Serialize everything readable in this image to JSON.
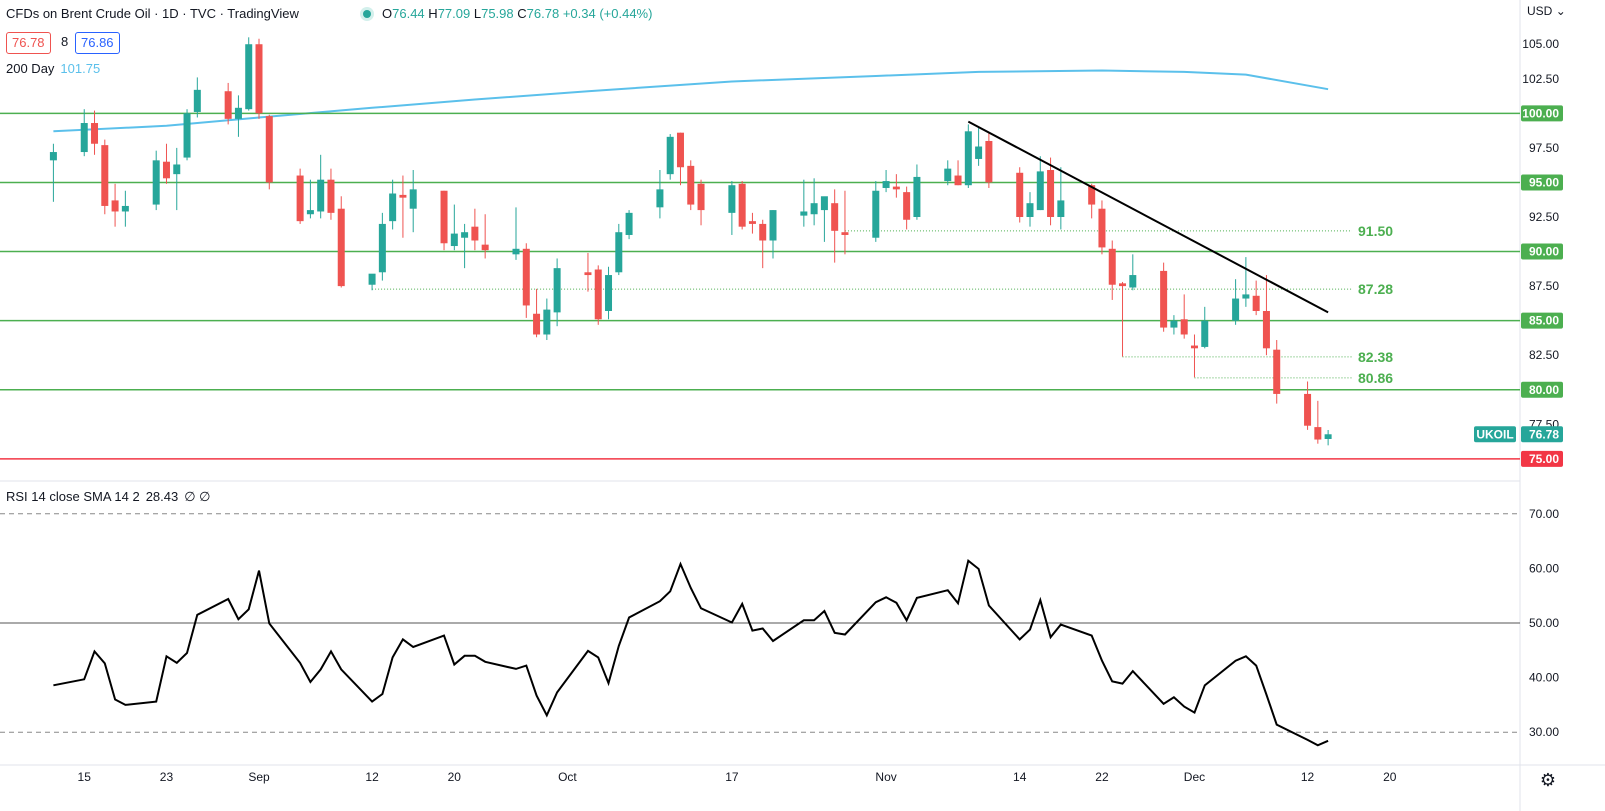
{
  "header": {
    "title": "CFDs on Brent Crude Oil · 1D · TVC · TradingView",
    "ohlc": [
      {
        "k": "O",
        "v": "76.44"
      },
      {
        "k": "H",
        "v": "77.09"
      },
      {
        "k": "L",
        "v": "75.98"
      },
      {
        "k": "C",
        "v": "76.78"
      }
    ],
    "change": "+0.34 (+0.44%)",
    "sell_price": "76.78",
    "spread": "8",
    "buy_price": "76.86",
    "currency": "USD"
  },
  "ma_legend": {
    "label": "200 Day",
    "value": "101.75"
  },
  "rsi_legend": {
    "label": "RSI 14 close SMA 14 2",
    "value": "28.43",
    "extra": "∅ ∅"
  },
  "colors": {
    "up": "#26a69a",
    "down": "#ef5350",
    "ma": "#5bc0eb",
    "support": "#4caf50",
    "key": "#f23645",
    "trend": "#000000"
  },
  "chart_data": [
    {
      "type": "candlestick",
      "title": "CFDs on Brent Crude Oil · 1D · TVC · TradingView",
      "ylim": [
        73.4,
        108.2
      ],
      "x_tick_labels": [
        "15",
        "23",
        "Sep",
        "12",
        "20",
        "Oct",
        "17",
        "Nov",
        "14",
        "22",
        "Dec",
        "12",
        "20"
      ],
      "x_tick_dates": [
        "Aug 15",
        "Aug 23",
        "Sep 1",
        "Sep 12",
        "Sep 20",
        "Oct 1",
        "Oct 17",
        "Nov 1",
        "Nov 14",
        "Nov 22",
        "Dec 1",
        "Dec 12",
        "Dec 20"
      ],
      "y_ticks": [
        "77.50",
        "82.50",
        "87.50",
        "92.50",
        "97.50",
        "102.50",
        "105.00"
      ],
      "candles": [
        {
          "d": "Aug 12",
          "o": 96.6,
          "h": 97.8,
          "l": 93.6,
          "c": 97.2
        },
        {
          "d": "Aug 15",
          "o": 97.2,
          "h": 100.3,
          "l": 96.9,
          "c": 99.3
        },
        {
          "d": "Aug 16",
          "o": 99.3,
          "h": 100.2,
          "l": 97.0,
          "c": 97.8
        },
        {
          "d": "Aug 17",
          "o": 97.7,
          "h": 98.1,
          "l": 92.7,
          "c": 93.3
        },
        {
          "d": "Aug 18",
          "o": 93.7,
          "h": 94.9,
          "l": 91.8,
          "c": 92.9
        },
        {
          "d": "Aug 19",
          "o": 92.9,
          "h": 94.4,
          "l": 91.8,
          "c": 93.3
        },
        {
          "d": "Aug 22",
          "o": 93.4,
          "h": 97.3,
          "l": 93.0,
          "c": 96.6
        },
        {
          "d": "Aug 23",
          "o": 96.5,
          "h": 97.8,
          "l": 94.9,
          "c": 95.3
        },
        {
          "d": "Aug 24",
          "o": 95.6,
          "h": 97.5,
          "l": 93.0,
          "c": 96.3
        },
        {
          "d": "Aug 25",
          "o": 96.8,
          "h": 100.3,
          "l": 96.6,
          "c": 100.0
        },
        {
          "d": "Aug 26",
          "o": 100.1,
          "h": 102.6,
          "l": 99.7,
          "c": 101.7
        },
        {
          "d": "Aug 29",
          "o": 101.6,
          "h": 102.2,
          "l": 99.2,
          "c": 99.6
        },
        {
          "d": "Aug 30",
          "o": 99.6,
          "h": 101.3,
          "l": 98.3,
          "c": 100.4
        },
        {
          "d": "Aug 31",
          "o": 100.3,
          "h": 105.5,
          "l": 100.2,
          "c": 105.0
        },
        {
          "d": "Sep 1",
          "o": 105.0,
          "h": 105.4,
          "l": 99.6,
          "c": 100.0
        },
        {
          "d": "Sep 2",
          "o": 99.8,
          "h": 99.9,
          "l": 94.5,
          "c": 95.0
        },
        {
          "d": "Sep 5",
          "o": 95.5,
          "h": 96.0,
          "l": 92.0,
          "c": 92.2
        },
        {
          "d": "Sep 6",
          "o": 92.7,
          "h": 95.2,
          "l": 92.4,
          "c": 93.0
        },
        {
          "d": "Sep 7",
          "o": 92.9,
          "h": 97.0,
          "l": 92.4,
          "c": 95.2
        },
        {
          "d": "Sep 8",
          "o": 95.2,
          "h": 96.0,
          "l": 92.3,
          "c": 92.8
        },
        {
          "d": "Sep 9",
          "o": 93.1,
          "h": 94.0,
          "l": 87.4,
          "c": 87.5
        },
        {
          "d": "Sep 12",
          "o": 87.6,
          "h": 88.3,
          "l": 87.2,
          "c": 88.4
        },
        {
          "d": "Sep 13",
          "o": 88.5,
          "h": 92.8,
          "l": 87.9,
          "c": 92.0
        },
        {
          "d": "Sep 14",
          "o": 92.2,
          "h": 95.2,
          "l": 91.6,
          "c": 94.2
        },
        {
          "d": "Sep 15",
          "o": 94.1,
          "h": 95.5,
          "l": 91.0,
          "c": 93.9
        },
        {
          "d": "Sep 16",
          "o": 93.1,
          "h": 95.9,
          "l": 91.4,
          "c": 94.5
        },
        {
          "d": "Sep 19",
          "o": 94.4,
          "h": 94.4,
          "l": 90.1,
          "c": 90.6
        },
        {
          "d": "Sep 20",
          "o": 90.4,
          "h": 93.4,
          "l": 90.1,
          "c": 91.3
        },
        {
          "d": "Sep 21",
          "o": 91.0,
          "h": 92.0,
          "l": 88.8,
          "c": 91.4
        },
        {
          "d": "Sep 22",
          "o": 91.8,
          "h": 93.1,
          "l": 90.1,
          "c": 90.8
        },
        {
          "d": "Sep 23",
          "o": 90.5,
          "h": 92.7,
          "l": 89.5,
          "c": 90.1
        },
        {
          "d": "Sep 26",
          "o": 89.8,
          "h": 93.2,
          "l": 89.4,
          "c": 90.2
        },
        {
          "d": "Sep 27",
          "o": 90.2,
          "h": 90.6,
          "l": 85.2,
          "c": 86.1
        },
        {
          "d": "Sep 28",
          "o": 85.5,
          "h": 87.3,
          "l": 83.8,
          "c": 84.0
        },
        {
          "d": "Sep 29",
          "o": 84.0,
          "h": 86.6,
          "l": 83.6,
          "c": 85.8
        },
        {
          "d": "Sep 30",
          "o": 85.6,
          "h": 89.5,
          "l": 84.6,
          "c": 88.8
        },
        {
          "d": "Oct 3",
          "o": 88.5,
          "h": 89.9,
          "l": 87.1,
          "c": 88.3
        },
        {
          "d": "Oct 4",
          "o": 88.7,
          "h": 89.0,
          "l": 84.7,
          "c": 85.1
        },
        {
          "d": "Oct 5",
          "o": 85.7,
          "h": 88.9,
          "l": 85.1,
          "c": 88.3
        },
        {
          "d": "Oct 6",
          "o": 88.5,
          "h": 92.0,
          "l": 88.3,
          "c": 91.4
        },
        {
          "d": "Oct 7",
          "o": 91.2,
          "h": 93.0,
          "l": 90.9,
          "c": 92.8
        },
        {
          "d": "Oct 10",
          "o": 93.2,
          "h": 95.9,
          "l": 92.4,
          "c": 94.5
        },
        {
          "d": "Oct 11",
          "o": 95.6,
          "h": 98.5,
          "l": 95.2,
          "c": 98.3
        },
        {
          "d": "Oct 12",
          "o": 98.6,
          "h": 98.6,
          "l": 94.8,
          "c": 96.1
        },
        {
          "d": "Oct 13",
          "o": 96.2,
          "h": 96.6,
          "l": 93.0,
          "c": 93.4
        },
        {
          "d": "Oct 14",
          "o": 94.9,
          "h": 95.2,
          "l": 91.9,
          "c": 93.0
        },
        {
          "d": "Oct 17",
          "o": 92.8,
          "h": 95.1,
          "l": 91.2,
          "c": 94.8
        },
        {
          "d": "Oct 18",
          "o": 94.9,
          "h": 95.1,
          "l": 91.6,
          "c": 91.8
        },
        {
          "d": "Oct 19",
          "o": 92.2,
          "h": 92.8,
          "l": 91.3,
          "c": 92.0
        },
        {
          "d": "Oct 20",
          "o": 92.0,
          "h": 92.3,
          "l": 88.8,
          "c": 90.8
        },
        {
          "d": "Oct 21",
          "o": 90.8,
          "h": 93.0,
          "l": 89.5,
          "c": 93.0
        },
        {
          "d": "Oct 24",
          "o": 92.6,
          "h": 95.2,
          "l": 91.8,
          "c": 92.9
        },
        {
          "d": "Oct 25",
          "o": 92.7,
          "h": 95.3,
          "l": 91.9,
          "c": 93.5
        },
        {
          "d": "Oct 26",
          "o": 93.0,
          "h": 93.8,
          "l": 90.7,
          "c": 94.0
        },
        {
          "d": "Oct 27",
          "o": 93.5,
          "h": 94.5,
          "l": 89.2,
          "c": 91.5
        },
        {
          "d": "Oct 28",
          "o": 91.4,
          "h": 94.4,
          "l": 89.8,
          "c": 91.2
        },
        {
          "d": "Oct 31",
          "o": 91.0,
          "h": 95.1,
          "l": 90.7,
          "c": 94.4
        },
        {
          "d": "Nov 1",
          "o": 94.6,
          "h": 95.9,
          "l": 94.3,
          "c": 95.1
        },
        {
          "d": "Nov 2",
          "o": 94.7,
          "h": 95.6,
          "l": 93.9,
          "c": 94.5
        },
        {
          "d": "Nov 3",
          "o": 94.3,
          "h": 94.7,
          "l": 91.6,
          "c": 92.3
        },
        {
          "d": "Nov 4",
          "o": 92.5,
          "h": 96.3,
          "l": 92.3,
          "c": 95.4
        },
        {
          "d": "Nov 7",
          "o": 95.1,
          "h": 96.6,
          "l": 94.8,
          "c": 96.0
        },
        {
          "d": "Nov 8",
          "o": 95.5,
          "h": 96.6,
          "l": 94.8,
          "c": 94.8
        },
        {
          "d": "Nov 9",
          "o": 94.8,
          "h": 99.2,
          "l": 94.6,
          "c": 98.7
        },
        {
          "d": "Nov 10",
          "o": 96.7,
          "h": 99.0,
          "l": 96.2,
          "c": 97.6
        },
        {
          "d": "Nov 11",
          "o": 98.0,
          "h": 98.6,
          "l": 94.6,
          "c": 95.0
        },
        {
          "d": "Nov 14",
          "o": 95.7,
          "h": 96.1,
          "l": 92.1,
          "c": 92.5
        },
        {
          "d": "Nov 15",
          "o": 92.5,
          "h": 94.3,
          "l": 91.8,
          "c": 93.5
        },
        {
          "d": "Nov 16",
          "o": 93.0,
          "h": 96.9,
          "l": 93.0,
          "c": 95.8
        },
        {
          "d": "Nov 17",
          "o": 95.9,
          "h": 96.8,
          "l": 91.9,
          "c": 92.5
        },
        {
          "d": "Nov 18",
          "o": 92.5,
          "h": 96.1,
          "l": 91.6,
          "c": 93.7
        },
        {
          "d": "Nov 21",
          "o": 94.8,
          "h": 94.9,
          "l": 92.4,
          "c": 93.4
        },
        {
          "d": "Nov 22",
          "o": 93.1,
          "h": 93.7,
          "l": 89.8,
          "c": 90.3
        },
        {
          "d": "Nov 23",
          "o": 90.2,
          "h": 90.8,
          "l": 86.5,
          "c": 87.6
        },
        {
          "d": "Nov 24",
          "o": 87.7,
          "h": 87.8,
          "l": 82.4,
          "c": 87.5
        },
        {
          "d": "Nov 25",
          "o": 87.4,
          "h": 89.8,
          "l": 87.2,
          "c": 88.3
        },
        {
          "d": "Nov 28",
          "o": 88.6,
          "h": 89.2,
          "l": 84.2,
          "c": 84.5
        },
        {
          "d": "Nov 29",
          "o": 84.5,
          "h": 85.4,
          "l": 84.0,
          "c": 85.0
        },
        {
          "d": "Nov 30",
          "o": 85.1,
          "h": 86.9,
          "l": 83.7,
          "c": 84.0
        },
        {
          "d": "Dec 1",
          "o": 83.2,
          "h": 84.0,
          "l": 80.9,
          "c": 83.0
        },
        {
          "d": "Dec 2",
          "o": 83.1,
          "h": 86.0,
          "l": 83.0,
          "c": 85.0
        },
        {
          "d": "Dec 5",
          "o": 85.0,
          "h": 88.0,
          "l": 84.7,
          "c": 86.6
        },
        {
          "d": "Dec 6",
          "o": 86.6,
          "h": 89.6,
          "l": 86.0,
          "c": 86.9
        },
        {
          "d": "Dec 7",
          "o": 86.8,
          "h": 87.9,
          "l": 85.4,
          "c": 85.7
        },
        {
          "d": "Dec 8",
          "o": 85.7,
          "h": 88.3,
          "l": 82.5,
          "c": 83.0
        },
        {
          "d": "Dec 9",
          "o": 82.9,
          "h": 83.6,
          "l": 79.0,
          "c": 79.7
        },
        {
          "d": "Dec 12",
          "o": 79.7,
          "h": 80.6,
          "l": 77.1,
          "c": 77.4
        },
        {
          "d": "Dec 13",
          "o": 77.3,
          "h": 79.2,
          "l": 76.1,
          "c": 76.4
        },
        {
          "d": "Dec 14",
          "o": 76.44,
          "h": 77.09,
          "l": 75.98,
          "c": 76.78
        }
      ],
      "ma200": {
        "name": "200 Day",
        "points": [
          {
            "d": "Aug 12",
            "v": 98.7
          },
          {
            "d": "Aug 23",
            "v": 99.1
          },
          {
            "d": "Sep 1",
            "v": 99.7
          },
          {
            "d": "Sep 12",
            "v": 100.4
          },
          {
            "d": "Sep 22",
            "v": 101.0
          },
          {
            "d": "Oct 3",
            "v": 101.6
          },
          {
            "d": "Oct 17",
            "v": 102.3
          },
          {
            "d": "Oct 31",
            "v": 102.7
          },
          {
            "d": "Nov 10",
            "v": 103.0
          },
          {
            "d": "Nov 22",
            "v": 103.1
          },
          {
            "d": "Nov 30",
            "v": 103.0
          },
          {
            "d": "Dec 6",
            "v": 102.8
          },
          {
            "d": "Dec 14",
            "v": 101.75
          }
        ]
      },
      "horizontal_levels": [
        {
          "value": 100.0,
          "label": "100.00",
          "kind": "support"
        },
        {
          "value": 95.0,
          "label": "95.00",
          "kind": "support"
        },
        {
          "value": 90.0,
          "label": "90.00",
          "kind": "support"
        },
        {
          "value": 85.0,
          "label": "85.00",
          "kind": "support"
        },
        {
          "value": 80.0,
          "label": "80.00",
          "kind": "support"
        },
        {
          "value": 75.0,
          "label": "75.00",
          "kind": "key"
        }
      ],
      "dotted_levels": [
        {
          "value": 91.5,
          "label": "91.50",
          "from": "Oct 28"
        },
        {
          "value": 87.28,
          "label": "87.28",
          "from": "Sep 12"
        },
        {
          "value": 82.38,
          "label": "82.38",
          "from": "Nov 24"
        },
        {
          "value": 80.86,
          "label": "80.86",
          "from": "Dec 1"
        }
      ],
      "trendline": {
        "from": {
          "d": "Nov 9",
          "v": 99.4
        },
        "to": {
          "d": "Dec 14",
          "v": 85.6
        }
      },
      "last_price_label": {
        "symbol": "UKOIL",
        "value": "76.78"
      }
    },
    {
      "type": "line",
      "title": "RSI 14 close SMA 14 2",
      "ylim": [
        24.0,
        76.0
      ],
      "y_ticks": [
        "30.00",
        "40.00",
        "50.00",
        "60.00",
        "70.00"
      ],
      "reference_lines": [
        {
          "value": 70,
          "style": "dashed"
        },
        {
          "value": 50,
          "style": "solid"
        },
        {
          "value": 30,
          "style": "dashed"
        }
      ],
      "series": [
        {
          "values": [
            38.6,
            39.7,
            44.8,
            42.6,
            36.0,
            35.0,
            35.6,
            43.9,
            42.7,
            44.5,
            51.5,
            54.4,
            50.7,
            52.5,
            59.6,
            49.9,
            42.7,
            39.2,
            41.5,
            44.8,
            41.5,
            35.6,
            37.0,
            43.7,
            47.0,
            45.6,
            47.7,
            42.4,
            44.0,
            44.0,
            42.9,
            41.6,
            42.2,
            36.7,
            33.1,
            37.3,
            44.9,
            43.7,
            39.0,
            45.8,
            51.0,
            54.0,
            55.8,
            60.8,
            56.4,
            52.7,
            50.1,
            53.5,
            48.6,
            49.0,
            46.7,
            50.5,
            50.5,
            52.2,
            48.2,
            47.9,
            53.8,
            54.7,
            53.7,
            50.5,
            54.6,
            56.0,
            53.6,
            61.4,
            59.9,
            53.2,
            47.0,
            48.8,
            54.2,
            47.4,
            49.7,
            47.7,
            43.1,
            39.3,
            38.9,
            41.2,
            35.2,
            36.4,
            34.7,
            33.6,
            38.6,
            43.1,
            43.9,
            42.2,
            36.9,
            31.4,
            28.6,
            27.6,
            28.43
          ]
        }
      ]
    }
  ]
}
